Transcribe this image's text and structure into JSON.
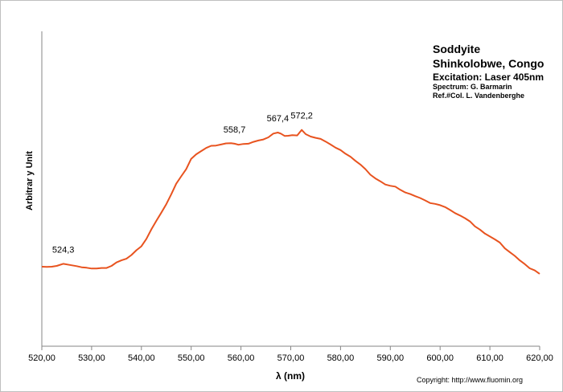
{
  "info": {
    "title": "Soddyite",
    "location": "Shinkolobwe, Congo",
    "excitation": "Excitation:  Laser 405nm",
    "spectrum": "Spectrum: G. Barmarin",
    "ref": "Ref.#Col. L. Vandenberghe"
  },
  "copyright": "Copyright: http://www.fluomin.org",
  "chart_data": {
    "type": "line",
    "title": "Soddyite",
    "xlabel": "λ (nm)",
    "ylabel": "Arbitrar y Unit",
    "xlim": [
      520,
      620
    ],
    "ylim": [
      0,
      100
    ],
    "xticks": [
      "520,00",
      "530,00",
      "540,00",
      "550,00",
      "560,00",
      "570,00",
      "580,00",
      "590,00",
      "600,00",
      "610,00",
      "620,00"
    ],
    "grid": false,
    "line_color": "#e8531f",
    "series": [
      {
        "x": [
          520,
          521,
          522,
          523,
          524.3,
          525.5,
          527,
          528,
          529,
          530,
          531,
          532,
          533,
          534,
          535,
          536,
          537,
          538,
          539,
          540,
          541,
          542,
          543,
          544,
          545,
          546,
          547,
          548,
          549,
          550,
          551,
          552,
          553,
          554,
          555,
          556,
          557,
          558,
          558.7,
          559.5,
          560.5,
          561.5,
          562.5,
          563.5,
          564.5,
          565.5,
          566.5,
          567.4,
          568,
          568.8,
          569.5,
          570.3,
          571.3,
          572.2,
          573,
          574,
          575,
          576,
          577,
          578,
          579,
          580,
          581,
          582,
          583,
          584,
          585,
          586,
          587,
          588,
          589,
          590,
          591,
          592,
          593,
          594,
          595,
          596,
          597,
          598,
          599,
          600,
          601,
          602,
          603,
          604,
          605,
          606,
          607,
          608,
          609,
          610,
          611,
          612,
          613,
          614,
          615,
          616,
          617,
          618,
          619,
          620
        ],
        "y": [
          30.0,
          29.9,
          30.0,
          30.3,
          31.1,
          30.7,
          30.2,
          29.8,
          29.6,
          29.3,
          29.3,
          29.5,
          29.5,
          30.3,
          31.6,
          32.4,
          33.0,
          34.4,
          36.2,
          37.7,
          40.5,
          44.1,
          47.3,
          50.4,
          53.6,
          57.3,
          61.3,
          64.1,
          66.8,
          70.7,
          72.4,
          73.6,
          74.8,
          75.6,
          75.7,
          76.1,
          76.5,
          76.6,
          76.4,
          76.0,
          76.3,
          76.4,
          77.1,
          77.6,
          78.0,
          78.8,
          80.2,
          80.6,
          80.2,
          79.3,
          79.4,
          79.6,
          79.5,
          81.6,
          80.0,
          79.1,
          78.6,
          78.2,
          77.2,
          76.1,
          74.9,
          74.0,
          72.6,
          71.5,
          69.9,
          68.5,
          66.8,
          64.7,
          63.3,
          62.2,
          61.0,
          60.5,
          60.2,
          59.0,
          58.0,
          57.4,
          56.6,
          55.9,
          55.0,
          54.0,
          53.7,
          53.2,
          52.5,
          51.4,
          50.2,
          49.3,
          48.3,
          47.1,
          45.2,
          44.0,
          42.5,
          41.4,
          40.3,
          39.1,
          36.9,
          35.5,
          34.1,
          32.4,
          31.0,
          29.4,
          28.6,
          27.3
        ],
        "annotations": [
          {
            "x": 524.3,
            "label": "524,3"
          },
          {
            "x": 558.7,
            "label": "558,7"
          },
          {
            "x": 567.4,
            "label": "567,4"
          },
          {
            "x": 572.2,
            "label": "572,2"
          }
        ]
      }
    ]
  }
}
